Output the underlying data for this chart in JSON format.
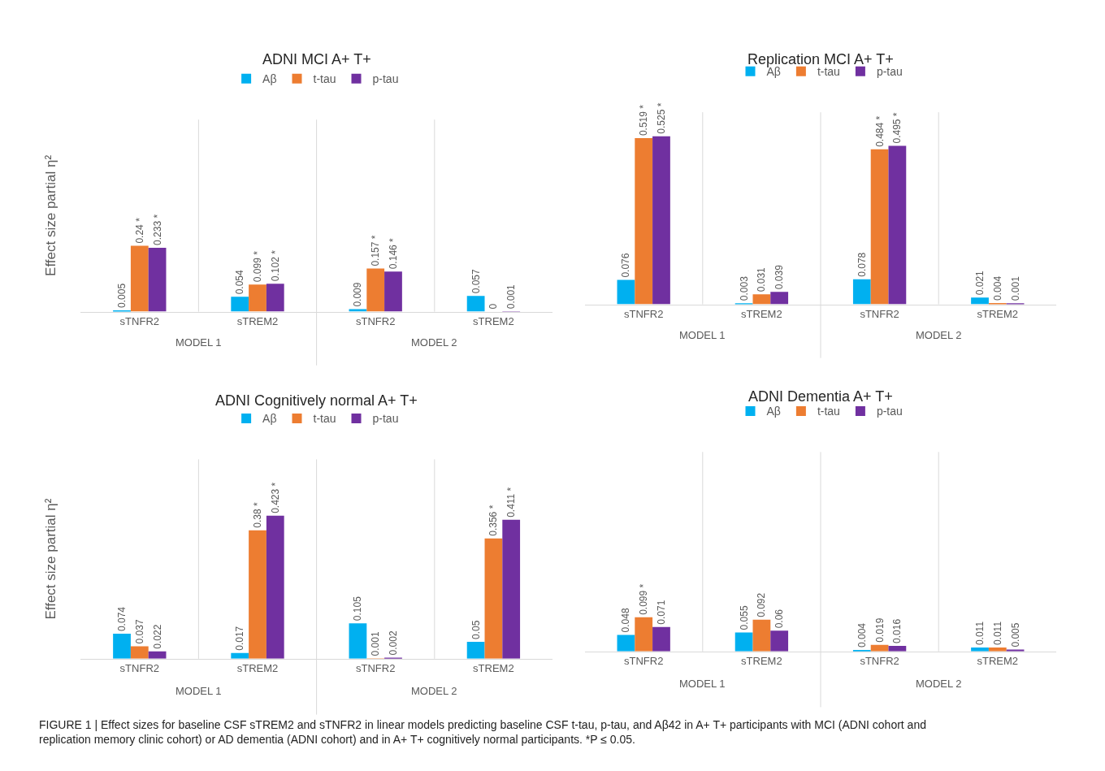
{
  "chart_data": [
    {
      "type": "bar",
      "title": "ADNI MCI A+ T+",
      "ylabel": "Effect size partial η²",
      "categories": [
        "sTNFR2",
        "sTREM2",
        "sTNFR2",
        "sTREM2"
      ],
      "annotations": [
        "MODEL 1",
        "MODEL 2"
      ],
      "ylim": [
        0,
        0.7
      ],
      "tick_labels": "x",
      "grid": "x",
      "legend": "top",
      "series": [
        {
          "name": "Aβ",
          "color": "#00b0f0",
          "values": [
            0.005,
            0.054,
            0.009,
            0.057
          ],
          "value_labels": [
            "0.005",
            "0.054",
            "0.009",
            "0.057"
          ]
        },
        {
          "name": "t-tau",
          "color": "#ed7d31",
          "values": [
            0.24,
            0.099,
            0.157,
            0
          ],
          "value_labels": [
            "0.24 *",
            "0.099 *",
            "0.157 *",
            "0"
          ]
        },
        {
          "name": "p-tau",
          "color": "#7030a0",
          "values": [
            0.233,
            0.102,
            0.146,
            0.001
          ],
          "value_labels": [
            "0.233 *",
            "0.102 *",
            "0.146 *",
            "0.001"
          ]
        }
      ]
    },
    {
      "type": "bar",
      "title": "Replication MCI A+ T+",
      "categories": [
        "sTNFR2",
        "sTREM2",
        "sTNFR2",
        "sTREM2"
      ],
      "annotations": [
        "MODEL 1",
        "MODEL 2"
      ],
      "ylim": [
        0,
        0.6
      ],
      "tick_labels": "x",
      "grid": "x",
      "legend": "top",
      "series": [
        {
          "name": "Aβ",
          "color": "#00b0f0",
          "values": [
            0.076,
            0.003,
            0.078,
            0.021
          ],
          "value_labels": [
            "0.076",
            "0.003",
            "0.078",
            "0.021"
          ]
        },
        {
          "name": "t-tau",
          "color": "#ed7d31",
          "values": [
            0.519,
            0.031,
            0.484,
            0.004
          ],
          "value_labels": [
            "0.519 *",
            "0.031",
            "0.484 *",
            "0.004"
          ]
        },
        {
          "name": "p-tau",
          "color": "#7030a0",
          "values": [
            0.525,
            0.039,
            0.495,
            0.001
          ],
          "value_labels": [
            "0.525 *",
            "0.039",
            "0.495 *",
            "0.001"
          ]
        }
      ]
    },
    {
      "type": "bar",
      "title": "ADNI Cognitively normal A+ T+",
      "ylabel": "Effect size partial η²",
      "categories": [
        "sTNFR2",
        "sTREM2",
        "sTNFR2",
        "sTREM2"
      ],
      "annotations": [
        "MODEL 1",
        "MODEL 2"
      ],
      "ylim": [
        0,
        0.59
      ],
      "tick_labels": "x",
      "grid": "x",
      "legend": "top",
      "series": [
        {
          "name": "Aβ",
          "color": "#00b0f0",
          "values": [
            0.074,
            0.017,
            0.105,
            0.05
          ],
          "value_labels": [
            "0.074",
            "0.017",
            "0.105",
            "0.05"
          ]
        },
        {
          "name": "t-tau",
          "color": "#ed7d31",
          "values": [
            0.037,
            0.38,
            0.001,
            0.356
          ],
          "value_labels": [
            "0.037",
            "0.38 *",
            "0.001",
            "0.356 *"
          ]
        },
        {
          "name": "p-tau",
          "color": "#7030a0",
          "values": [
            0.022,
            0.423,
            0.002,
            0.411
          ],
          "value_labels": [
            "0.022",
            "0.423 *",
            "0.002",
            "0.411 *"
          ]
        }
      ]
    },
    {
      "type": "bar",
      "title": "ADNI Dementia A+ T+",
      "categories": [
        "sTNFR2",
        "sTREM2",
        "sTNFR2",
        "sTREM2"
      ],
      "annotations": [
        "MODEL 1",
        "MODEL 2",
        "FIGURE 1 | Effect sizes for baseline CSF sTREM2 and sTNFR2 in linear models predicting baseline CSF t-tau, p-tau, and Aβ42 in A+ T+ participants with MCI (ADNI cohort and replication memory clinic cohort) or AD dementia (ADNI cohort) and in A+ T+ cognitively normal participants. *P ≤ 0.05."
      ],
      "ylim": [
        0,
        0.58
      ],
      "tick_labels": "x",
      "grid": "x",
      "legend": "top",
      "series": [
        {
          "name": "Aβ",
          "color": "#00b0f0",
          "values": [
            0.048,
            0.055,
            0.004,
            0.011
          ],
          "value_labels": [
            "0.048",
            "0.055",
            "0.004",
            "0.011"
          ]
        },
        {
          "name": "t-tau",
          "color": "#ed7d31",
          "values": [
            0.099,
            0.092,
            0.019,
            0.011
          ],
          "value_labels": [
            "0.099 *",
            "0.092",
            "0.019",
            "0.011"
          ]
        },
        {
          "name": "p-tau",
          "color": "#7030a0",
          "values": [
            0.071,
            0.06,
            0.016,
            0.005
          ],
          "value_labels": [
            "0.071",
            "0.06",
            "0.016",
            "0.005"
          ]
        }
      ]
    }
  ]
}
